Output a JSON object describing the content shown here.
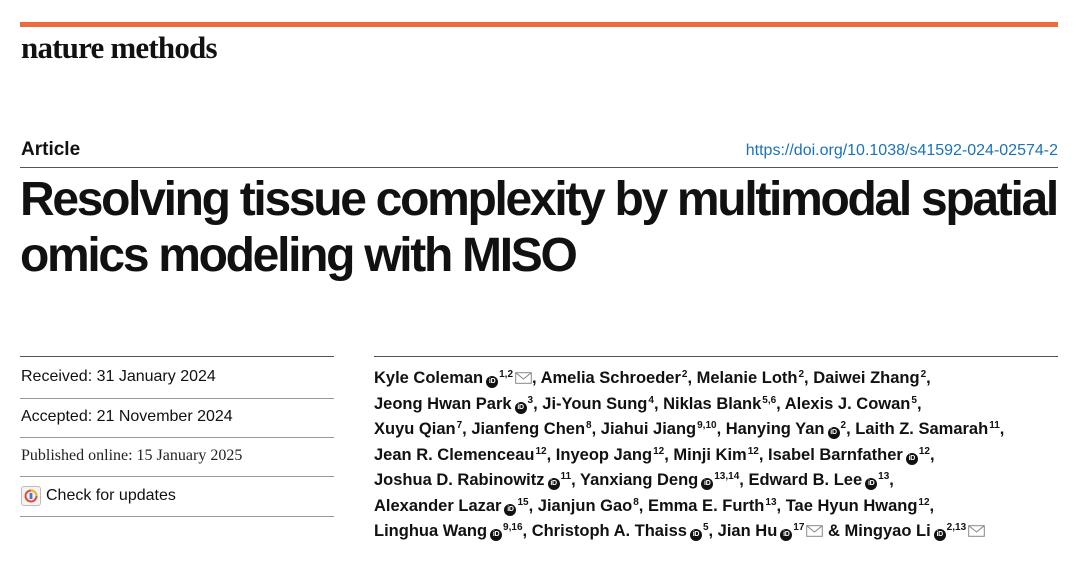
{
  "colors": {
    "accent": "#ec6a3d",
    "link": "#1a73b8"
  },
  "journal": {
    "name": "nature methods"
  },
  "article": {
    "type": "Article",
    "doi": "https://doi.org/10.1038/s41592-024-02574-2",
    "title": "Resolving tissue complexity by multimodal spatial omics modeling with MISO"
  },
  "dates": {
    "received": "Received: 31 January 2024",
    "accepted": "Accepted: 21 November 2024",
    "published": "Published online: 15 January 2025"
  },
  "check_updates": {
    "label": "Check for updates"
  },
  "authors": [
    {
      "name": "Kyle Coleman",
      "aff": "1,2",
      "orcid": true,
      "corresponding": true,
      "sep": ", "
    },
    {
      "name": "Amelia Schroeder",
      "aff": "2",
      "orcid": false,
      "corresponding": false,
      "sep": ", "
    },
    {
      "name": "Melanie Loth",
      "aff": "2",
      "orcid": false,
      "corresponding": false,
      "sep": ", "
    },
    {
      "name": "Daiwei Zhang",
      "aff": "2",
      "orcid": false,
      "corresponding": false,
      "sep": ", "
    },
    {
      "name": "Jeong Hwan Park",
      "aff": "3",
      "orcid": true,
      "corresponding": false,
      "sep": ", "
    },
    {
      "name": "Ji-Youn Sung",
      "aff": "4",
      "orcid": false,
      "corresponding": false,
      "sep": ", "
    },
    {
      "name": "Niklas Blank",
      "aff": "5,6",
      "orcid": false,
      "corresponding": false,
      "sep": ", "
    },
    {
      "name": "Alexis J. Cowan",
      "aff": "5",
      "orcid": false,
      "corresponding": false,
      "sep": ", "
    },
    {
      "name": "Xuyu Qian",
      "aff": "7",
      "orcid": false,
      "corresponding": false,
      "sep": ", "
    },
    {
      "name": "Jianfeng Chen",
      "aff": "8",
      "orcid": false,
      "corresponding": false,
      "sep": ", "
    },
    {
      "name": "Jiahui Jiang",
      "aff": "9,10",
      "orcid": false,
      "corresponding": false,
      "sep": ", "
    },
    {
      "name": "Hanying Yan",
      "aff": "2",
      "orcid": true,
      "corresponding": false,
      "sep": ", "
    },
    {
      "name": "Laith Z. Samarah",
      "aff": "11",
      "orcid": false,
      "corresponding": false,
      "sep": ", "
    },
    {
      "name": "Jean R. Clemenceau",
      "aff": "12",
      "orcid": false,
      "corresponding": false,
      "sep": ", "
    },
    {
      "name": "Inyeop Jang",
      "aff": "12",
      "orcid": false,
      "corresponding": false,
      "sep": ", "
    },
    {
      "name": "Minji Kim",
      "aff": "12",
      "orcid": false,
      "corresponding": false,
      "sep": ", "
    },
    {
      "name": "Isabel Barnfather",
      "aff": "12",
      "orcid": true,
      "corresponding": false,
      "sep": ", "
    },
    {
      "name": "Joshua D. Rabinowitz",
      "aff": "11",
      "orcid": true,
      "corresponding": false,
      "sep": ", "
    },
    {
      "name": "Yanxiang Deng",
      "aff": "13,14",
      "orcid": true,
      "corresponding": false,
      "sep": ", "
    },
    {
      "name": "Edward B. Lee",
      "aff": "13",
      "orcid": true,
      "corresponding": false,
      "sep": ", "
    },
    {
      "name": "Alexander Lazar",
      "aff": "15",
      "orcid": true,
      "corresponding": false,
      "sep": ", "
    },
    {
      "name": "Jianjun Gao",
      "aff": "8",
      "orcid": false,
      "corresponding": false,
      "sep": ", "
    },
    {
      "name": "Emma E. Furth",
      "aff": "13",
      "orcid": false,
      "corresponding": false,
      "sep": ", "
    },
    {
      "name": "Tae Hyun Hwang",
      "aff": "12",
      "orcid": false,
      "corresponding": false,
      "sep": ", "
    },
    {
      "name": "Linghua Wang",
      "aff": "9,16",
      "orcid": true,
      "corresponding": false,
      "sep": ", "
    },
    {
      "name": "Christoph A. Thaiss",
      "aff": "5",
      "orcid": true,
      "corresponding": false,
      "sep": ", "
    },
    {
      "name": "Jian Hu",
      "aff": "17",
      "orcid": true,
      "corresponding": true,
      "sep": " & "
    },
    {
      "name": "Mingyao Li",
      "aff": "2,13",
      "orcid": true,
      "corresponding": true,
      "sep": ""
    }
  ]
}
